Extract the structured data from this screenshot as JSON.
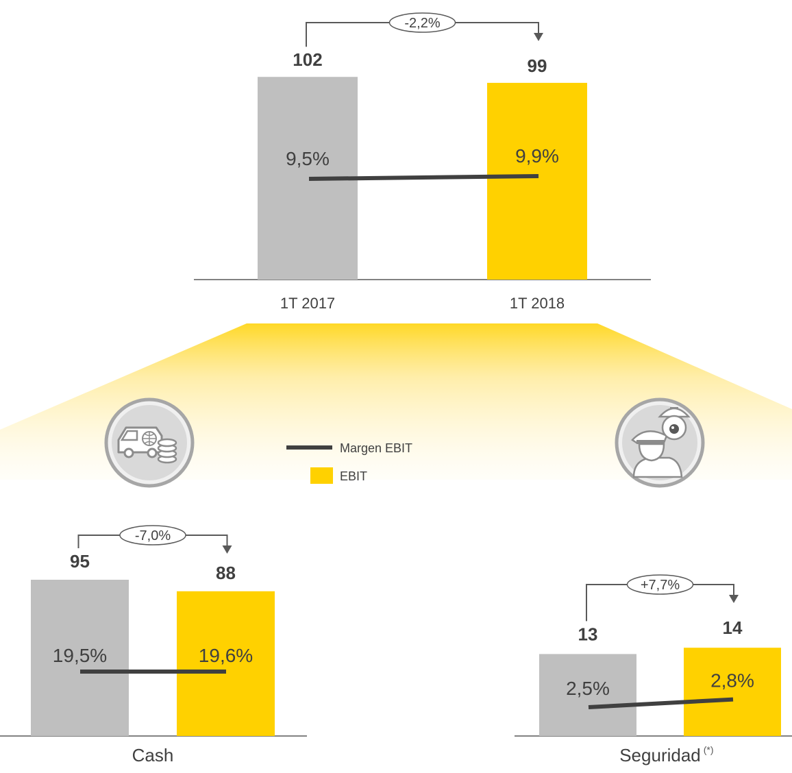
{
  "chart_data": [
    {
      "type": "bar",
      "categories": [
        "1T 2017",
        "1T 2018"
      ],
      "series": [
        {
          "name": "EBIT",
          "values": [
            102,
            99
          ]
        },
        {
          "name": "Margen EBIT",
          "values": [
            9.5,
            9.9
          ]
        }
      ],
      "value_labels": [
        "102",
        "99"
      ],
      "margin_labels": [
        "9,5%",
        "9,9%"
      ],
      "change_label": "-2,2%",
      "ylim": [
        0,
        110
      ]
    },
    {
      "type": "bar",
      "categories": [
        "",
        ""
      ],
      "title": "Cash",
      "series": [
        {
          "name": "EBIT",
          "values": [
            95,
            88
          ]
        },
        {
          "name": "Margen EBIT",
          "values": [
            19.5,
            19.6
          ]
        }
      ],
      "value_labels": [
        "95",
        "88"
      ],
      "margin_labels": [
        "19,5%",
        "19,6%"
      ],
      "change_label": "-7,0%",
      "ylim": [
        0,
        110
      ]
    },
    {
      "type": "bar",
      "categories": [
        "",
        ""
      ],
      "title": "Seguridad",
      "title_note": "(*)",
      "series": [
        {
          "name": "EBIT",
          "values": [
            13,
            14
          ]
        },
        {
          "name": "Margen EBIT",
          "values": [
            2.5,
            2.8
          ]
        }
      ],
      "value_labels": [
        "13",
        "14"
      ],
      "margin_labels": [
        "2,5%",
        "2,8%"
      ],
      "change_label": "+7,7%",
      "ylim": [
        0,
        50
      ]
    }
  ],
  "legend": {
    "line_label": "Margen EBIT",
    "bar_label": "EBIT"
  },
  "colors": {
    "bar_prior": "#bfbfbf",
    "bar_current": "#ffd100",
    "margin_line": "#404040",
    "axis": "#595959",
    "band": "#ffd100"
  },
  "icons": [
    "cash-van-icon",
    "security-guard-camera-icon"
  ]
}
